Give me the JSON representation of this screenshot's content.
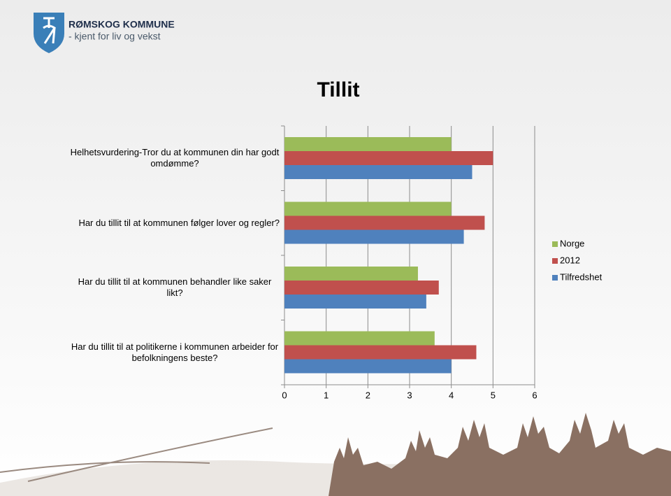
{
  "header": {
    "org": "RØMSKOG KOMMUNE",
    "tagline": "- kjent for liv og vekst"
  },
  "chart_data": {
    "type": "hbar",
    "title": "Tillit",
    "categories": [
      "Helhetsvurdering-Tror du at kommunen din har godt omdømme?",
      "Har du tillit til at kommunen følger lover og regler?",
      "Har du tillit til at kommunen behandler like saker likt?",
      "Har du tillit til at politikerne i kommunen arbeider for befolkningens beste?"
    ],
    "series": [
      {
        "name": "Norge",
        "color": "#9bbb59",
        "values": [
          4.0,
          4.0,
          3.2,
          3.6
        ]
      },
      {
        "name": "2012",
        "color": "#c0504d",
        "values": [
          5.0,
          4.8,
          3.7,
          4.6
        ]
      },
      {
        "name": "Tilfredshet",
        "color": "#4f81bd",
        "values": [
          4.5,
          4.3,
          3.4,
          4.0
        ]
      }
    ],
    "xlim": [
      0,
      6
    ],
    "xticks": [
      0,
      1,
      2,
      3,
      4,
      5,
      6
    ],
    "grid": true,
    "legend": "right"
  }
}
